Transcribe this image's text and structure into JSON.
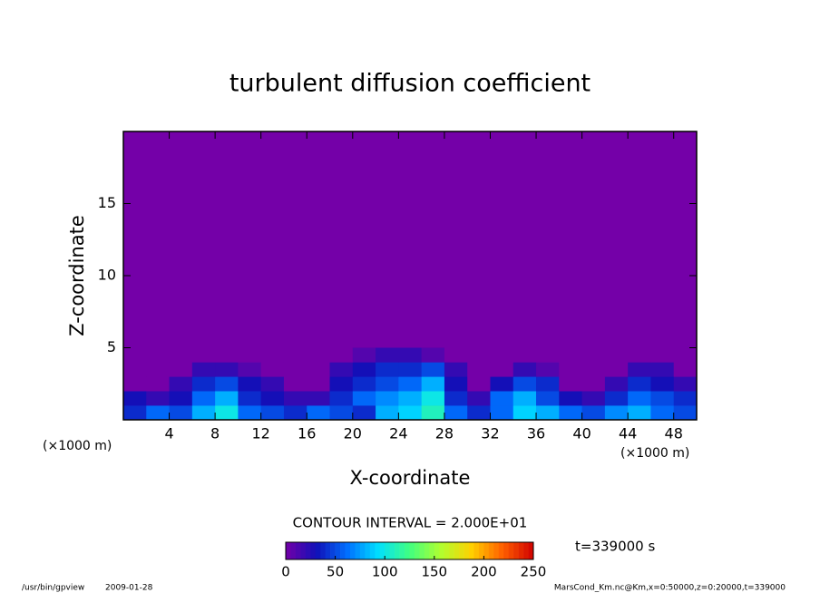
{
  "chart_data": {
    "type": "heatmap",
    "title": "turbulent diffusion coefficient",
    "x_label": "X-coordinate",
    "y_label": "Z-coordinate",
    "x_unit": "(×1000 m)",
    "xlim": [
      0,
      50
    ],
    "ylim": [
      0,
      20
    ],
    "xticks": [
      4,
      8,
      12,
      16,
      20,
      24,
      28,
      32,
      36,
      40,
      44,
      48
    ],
    "yticks": [
      5,
      10,
      15
    ],
    "x": [
      1,
      3,
      5,
      7,
      9,
      11,
      13,
      15,
      17,
      19,
      21,
      23,
      25,
      27,
      29,
      31,
      33,
      35,
      37,
      39,
      41,
      43,
      45,
      47,
      49
    ],
    "y": [
      0.5,
      1.5,
      2.5,
      3.5,
      4.5
    ],
    "z": [
      [
        40,
        60,
        50,
        80,
        100,
        60,
        50,
        40,
        60,
        50,
        40,
        80,
        90,
        110,
        60,
        40,
        60,
        90,
        80,
        60,
        50,
        70,
        80,
        60,
        50
      ],
      [
        30,
        20,
        30,
        60,
        80,
        40,
        30,
        20,
        20,
        40,
        60,
        70,
        80,
        100,
        40,
        20,
        60,
        80,
        50,
        30,
        20,
        40,
        60,
        50,
        40
      ],
      [
        0,
        0,
        20,
        40,
        50,
        30,
        20,
        0,
        0,
        30,
        40,
        50,
        60,
        80,
        30,
        0,
        30,
        50,
        40,
        0,
        0,
        20,
        40,
        30,
        20
      ],
      [
        0,
        0,
        0,
        20,
        20,
        10,
        0,
        0,
        0,
        20,
        30,
        40,
        40,
        50,
        20,
        0,
        0,
        20,
        10,
        0,
        0,
        0,
        20,
        20,
        0
      ],
      [
        0,
        0,
        0,
        0,
        0,
        0,
        0,
        0,
        0,
        0,
        10,
        20,
        20,
        10,
        0,
        0,
        0,
        0,
        0,
        0,
        0,
        0,
        0,
        0,
        0
      ]
    ],
    "colormap": [
      "#7400a8",
      "#1010b8",
      "#0070ff",
      "#00e0ff",
      "#40ff80",
      "#b0ff30",
      "#ffd000",
      "#ff6000",
      "#d00000"
    ],
    "clim": [
      0,
      250
    ],
    "cticks": [
      0,
      50,
      100,
      150,
      200,
      250
    ],
    "contour_note": "CONTOUR INTERVAL = 2.000E+01",
    "time_note": "t=339000 s",
    "footer_program": "/usr/bin/gpview",
    "footer_date": "2009-01-28",
    "footer_source": "MarsCond_Km.nc@Km,x=0:50000,z=0:20000,t=339000"
  }
}
